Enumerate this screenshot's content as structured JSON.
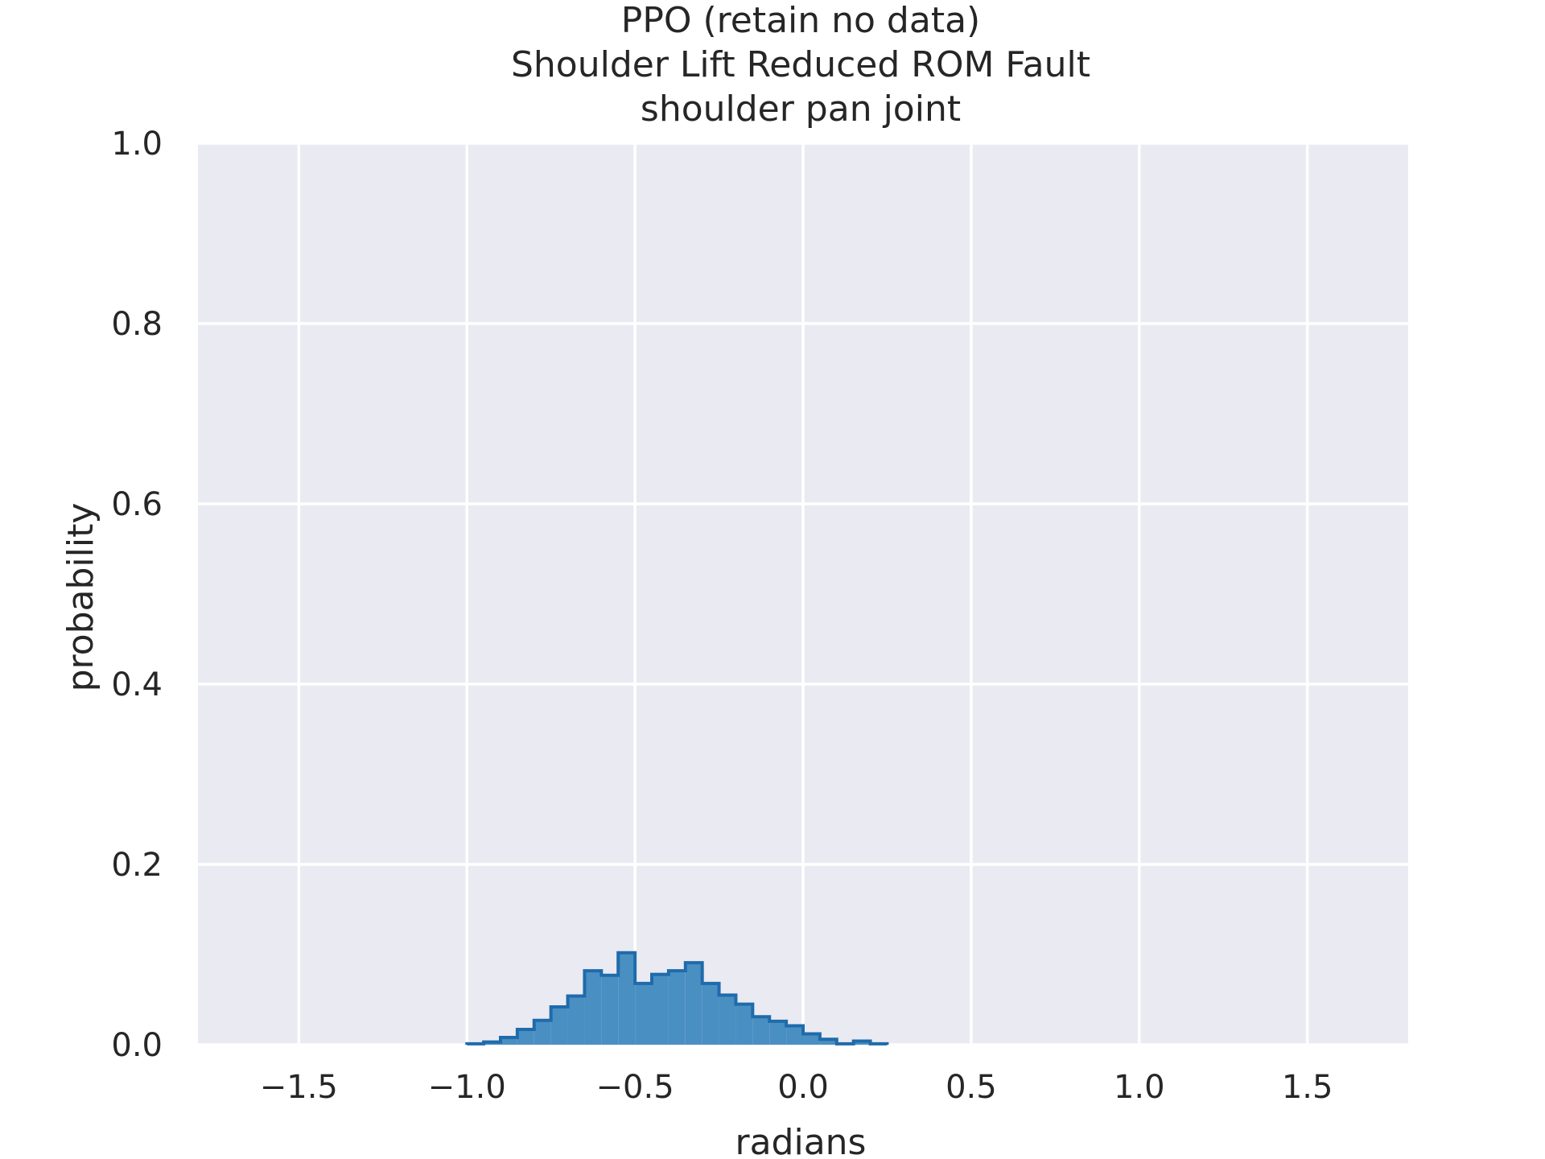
{
  "chart_data": {
    "type": "bar",
    "title": [
      "PPO (retain no data)",
      "Shoulder Lift Reduced ROM Fault",
      "shoulder pan joint"
    ],
    "xlabel": "radians",
    "ylabel": "probability",
    "xlim": [
      -1.8,
      1.8
    ],
    "ylim": [
      0.0,
      1.0
    ],
    "xticks": [
      -1.5,
      -1.0,
      -0.5,
      0.0,
      0.5,
      1.0,
      1.5
    ],
    "xtick_labels": [
      "−1.5",
      "−1.0",
      "−0.5",
      "0.0",
      "0.5",
      "1.0",
      "1.5"
    ],
    "yticks": [
      0.0,
      0.2,
      0.4,
      0.6,
      0.8,
      1.0
    ],
    "ytick_labels": [
      "0.0",
      "0.2",
      "0.4",
      "0.6",
      "0.8",
      "1.0"
    ],
    "grid": true,
    "bin_edges": [
      -1.0,
      -0.95,
      -0.9,
      -0.85,
      -0.8,
      -0.75,
      -0.7,
      -0.65,
      -0.6,
      -0.55,
      -0.5,
      -0.45,
      -0.4,
      -0.35,
      -0.3,
      -0.25,
      -0.2,
      -0.15,
      -0.1,
      -0.05,
      0.0,
      0.05,
      0.1,
      0.15,
      0.2,
      0.25
    ],
    "values": [
      0.001,
      0.003,
      0.008,
      0.017,
      0.027,
      0.042,
      0.054,
      0.082,
      0.077,
      0.102,
      0.068,
      0.078,
      0.082,
      0.091,
      0.068,
      0.055,
      0.045,
      0.031,
      0.026,
      0.021,
      0.012,
      0.006,
      0.001,
      0.004,
      0.001
    ],
    "colors": {
      "fill": "#4a8fc2",
      "edge": "#1f6bab",
      "background": "#eaeaf2",
      "grid": "#ffffff",
      "text": "#262626"
    }
  }
}
